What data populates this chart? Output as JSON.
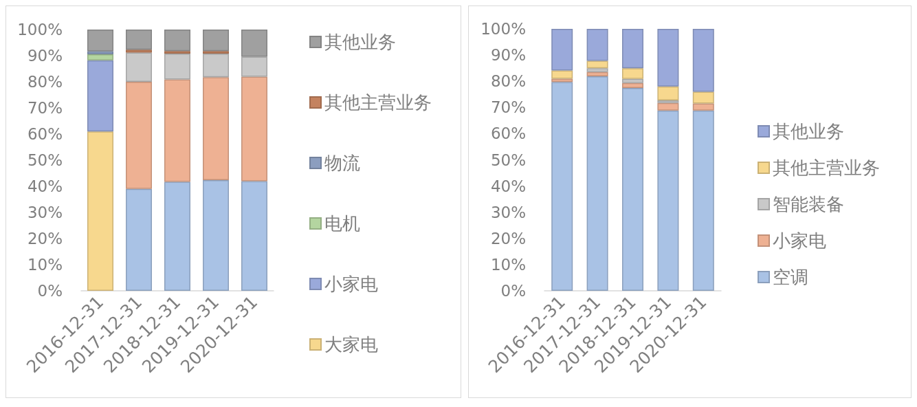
{
  "chart_data": [
    {
      "type": "bar",
      "stacked": true,
      "legend": "right",
      "categories": [
        "2016-12-31",
        "2017-12-31",
        "2018-12-31",
        "2019-12-31",
        "2020-12-31"
      ],
      "series": [
        {
          "name": "大家电",
          "color": "#f7d88e",
          "values": [
            61.0,
            null,
            null,
            null,
            null
          ]
        },
        {
          "color": "#a9c2e5",
          "values": [
            null,
            39.0,
            41.7,
            42.4,
            42.0
          ]
        },
        {
          "name": "小家电",
          "color": "#9aa9da",
          "values": [
            27.2,
            null,
            null,
            null,
            null
          ]
        },
        {
          "color": "#eeb193",
          "values": [
            null,
            41.0,
            39.2,
            39.4,
            40.0
          ]
        },
        {
          "name": "电机",
          "color": "#b4d5a0",
          "values": [
            2.3,
            null,
            null,
            null,
            null
          ]
        },
        {
          "name": "物流",
          "color": "#8c9ebf",
          "values": [
            1.2,
            null,
            null,
            null,
            null
          ]
        },
        {
          "color": "#c9c9c9",
          "values": [
            null,
            11.2,
            9.9,
            9.0,
            7.6
          ]
        },
        {
          "name": "其他主营业务",
          "color": "#c4825f",
          "values": [
            null,
            1.1,
            1.0,
            1.0,
            null
          ]
        },
        {
          "name": "其他业务",
          "color": "#a0a0a0",
          "values": [
            8.3,
            7.7,
            8.2,
            8.2,
            10.4
          ]
        }
      ],
      "ylim": [
        0,
        100
      ],
      "yticks": [
        {
          "value": 0,
          "label": "0%"
        },
        {
          "value": 10,
          "label": "10%"
        },
        {
          "value": 20,
          "label": "20%"
        },
        {
          "value": 30,
          "label": "30%"
        },
        {
          "value": 40,
          "label": "40%"
        },
        {
          "value": 50,
          "label": "50%"
        },
        {
          "value": 60,
          "label": "60%"
        },
        {
          "value": 70,
          "label": "70%"
        },
        {
          "value": 80,
          "label": "80%"
        },
        {
          "value": 90,
          "label": "90%"
        },
        {
          "value": 100,
          "label": "100%"
        }
      ]
    },
    {
      "type": "bar",
      "stacked": true,
      "legend": "right",
      "categories": [
        "2016-12-31",
        "2017-12-31",
        "2018-12-31",
        "2019-12-31",
        "2020-12-31"
      ],
      "series": [
        {
          "name": "空调",
          "color": "#a9c2e5",
          "values": [
            79.7,
            81.9,
            77.4,
            68.8,
            68.8
          ]
        },
        {
          "name": "小家电",
          "color": "#eeb193",
          "values": [
            1.3,
            1.6,
            1.9,
            2.9,
            2.7
          ]
        },
        {
          "name": "智能装备",
          "color": "#c9c9c9",
          "values": [
            null,
            1.5,
            1.6,
            1.0,
            null
          ]
        },
        {
          "name": "其他主营业务",
          "color": "#f7d88e",
          "values": [
            3.1,
            2.8,
            4.1,
            5.3,
            4.5
          ]
        },
        {
          "name": "其他业务",
          "color": "#9aa9da",
          "values": [
            15.9,
            12.2,
            15.0,
            22.0,
            24.0
          ]
        }
      ],
      "ylim": [
        0,
        100
      ],
      "yticks": [
        {
          "value": 0,
          "label": "0%"
        },
        {
          "value": 10,
          "label": "10%"
        },
        {
          "value": 20,
          "label": "20%"
        },
        {
          "value": 30,
          "label": "30%"
        },
        {
          "value": 40,
          "label": "40%"
        },
        {
          "value": 50,
          "label": "50%"
        },
        {
          "value": 60,
          "label": "60%"
        },
        {
          "value": 70,
          "label": "70%"
        },
        {
          "value": 80,
          "label": "80%"
        },
        {
          "value": 90,
          "label": "90%"
        },
        {
          "value": 100,
          "label": "100%"
        }
      ]
    }
  ]
}
